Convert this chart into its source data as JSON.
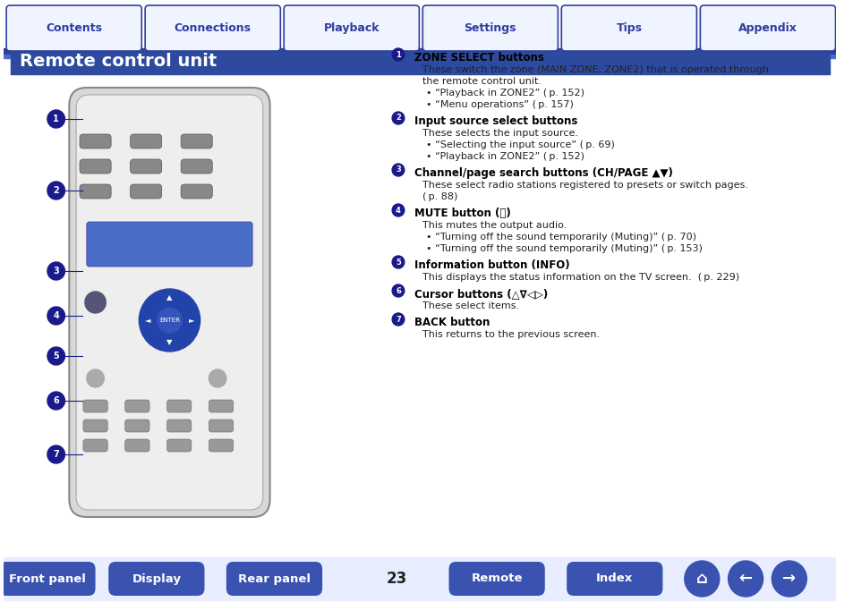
{
  "title": "Remote control unit",
  "title_bg": "#2E4A9E",
  "title_color": "#FFFFFF",
  "page_bg": "#FFFFFF",
  "header_tabs": [
    "Contents",
    "Connections",
    "Playback",
    "Settings",
    "Tips",
    "Appendix"
  ],
  "header_tab_color": "#FFFFFF",
  "header_tab_text_color": "#2E3D9E",
  "header_border_color": "#2E3D9E",
  "footer_buttons": [
    "Front panel",
    "Display",
    "Rear panel",
    "Remote",
    "Index"
  ],
  "footer_button_color": "#3A52B0",
  "footer_button_text_color": "#FFFFFF",
  "page_number": "23",
  "bullet_color": "#1A1A8C",
  "sections": [
    {
      "num": "1",
      "heading": "ZONE SELECT buttons",
      "body": "These switch the zone (MAIN ZONE, ZONE2) that is operated through\nthe remote control unit.",
      "bullets": [
        "“Playback in ZONE2” ( p. 152)",
        "“Menu operations” ( p. 157)"
      ]
    },
    {
      "num": "2",
      "heading": "Input source select buttons",
      "body": "These selects the input source.",
      "bullets": [
        "“Selecting the input source” ( p. 69)",
        "“Playback in ZONE2” ( p. 152)"
      ]
    },
    {
      "num": "3",
      "heading": "Channel/page search buttons (CH/PAGE ▲▼)",
      "body": "These select radio stations registered to presets or switch pages.\n( p. 88)",
      "bullets": []
    },
    {
      "num": "4",
      "heading": "MUTE button (🔇)",
      "heading_plain": "MUTE button (ɸx)",
      "body": "This mutes the output audio.",
      "bullets": [
        "“Turning off the sound temporarily (Muting)” ( p. 70)",
        "“Turning off the sound temporarily (Muting)” ( p. 153)"
      ]
    },
    {
      "num": "5",
      "heading": "Information button (INFO)",
      "body": "This displays the status information on the TV screen.  ( p. 229)",
      "bullets": []
    },
    {
      "num": "6",
      "heading": "Cursor buttons (△∇◁▷)",
      "body": "These select items.",
      "bullets": []
    },
    {
      "num": "7",
      "heading": "BACK button",
      "body": "This returns to the previous screen.",
      "bullets": []
    }
  ]
}
